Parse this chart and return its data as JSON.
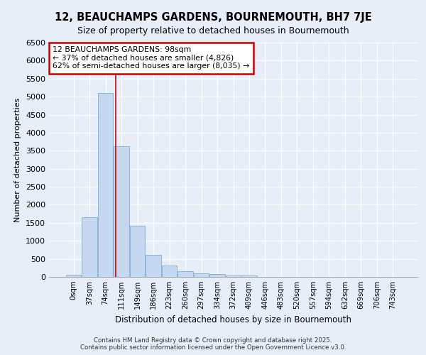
{
  "title": "12, BEAUCHAMPS GARDENS, BOURNEMOUTH, BH7 7JE",
  "subtitle": "Size of property relative to detached houses in Bournemouth",
  "xlabel": "Distribution of detached houses by size in Bournemouth",
  "ylabel": "Number of detached properties",
  "categories": [
    "0sqm",
    "37sqm",
    "74sqm",
    "111sqm",
    "149sqm",
    "186sqm",
    "223sqm",
    "260sqm",
    "297sqm",
    "334sqm",
    "372sqm",
    "409sqm",
    "446sqm",
    "483sqm",
    "520sqm",
    "557sqm",
    "594sqm",
    "632sqm",
    "669sqm",
    "706sqm",
    "743sqm"
  ],
  "values": [
    55,
    1660,
    5100,
    3620,
    1420,
    620,
    310,
    155,
    100,
    70,
    45,
    30,
    5,
    2,
    1,
    1,
    0,
    0,
    0,
    0,
    0
  ],
  "bar_color": "#c5d8f0",
  "bar_edge_color": "#7aafd4",
  "red_line_x": 2.65,
  "annotation_text": "12 BEAUCHAMPS GARDENS: 98sqm\n← 37% of detached houses are smaller (4,826)\n62% of semi-detached houses are larger (8,035) →",
  "annotation_box_facecolor": "#ffffff",
  "annotation_box_edgecolor": "#cc0000",
  "ylim": [
    0,
    6500
  ],
  "yticks": [
    0,
    500,
    1000,
    1500,
    2000,
    2500,
    3000,
    3500,
    4000,
    4500,
    5000,
    5500,
    6000,
    6500
  ],
  "background_color": "#e8eef8",
  "grid_color": "#ffffff",
  "footer_line1": "Contains HM Land Registry data © Crown copyright and database right 2025.",
  "footer_line2": "Contains public sector information licensed under the Open Government Licence v3.0."
}
